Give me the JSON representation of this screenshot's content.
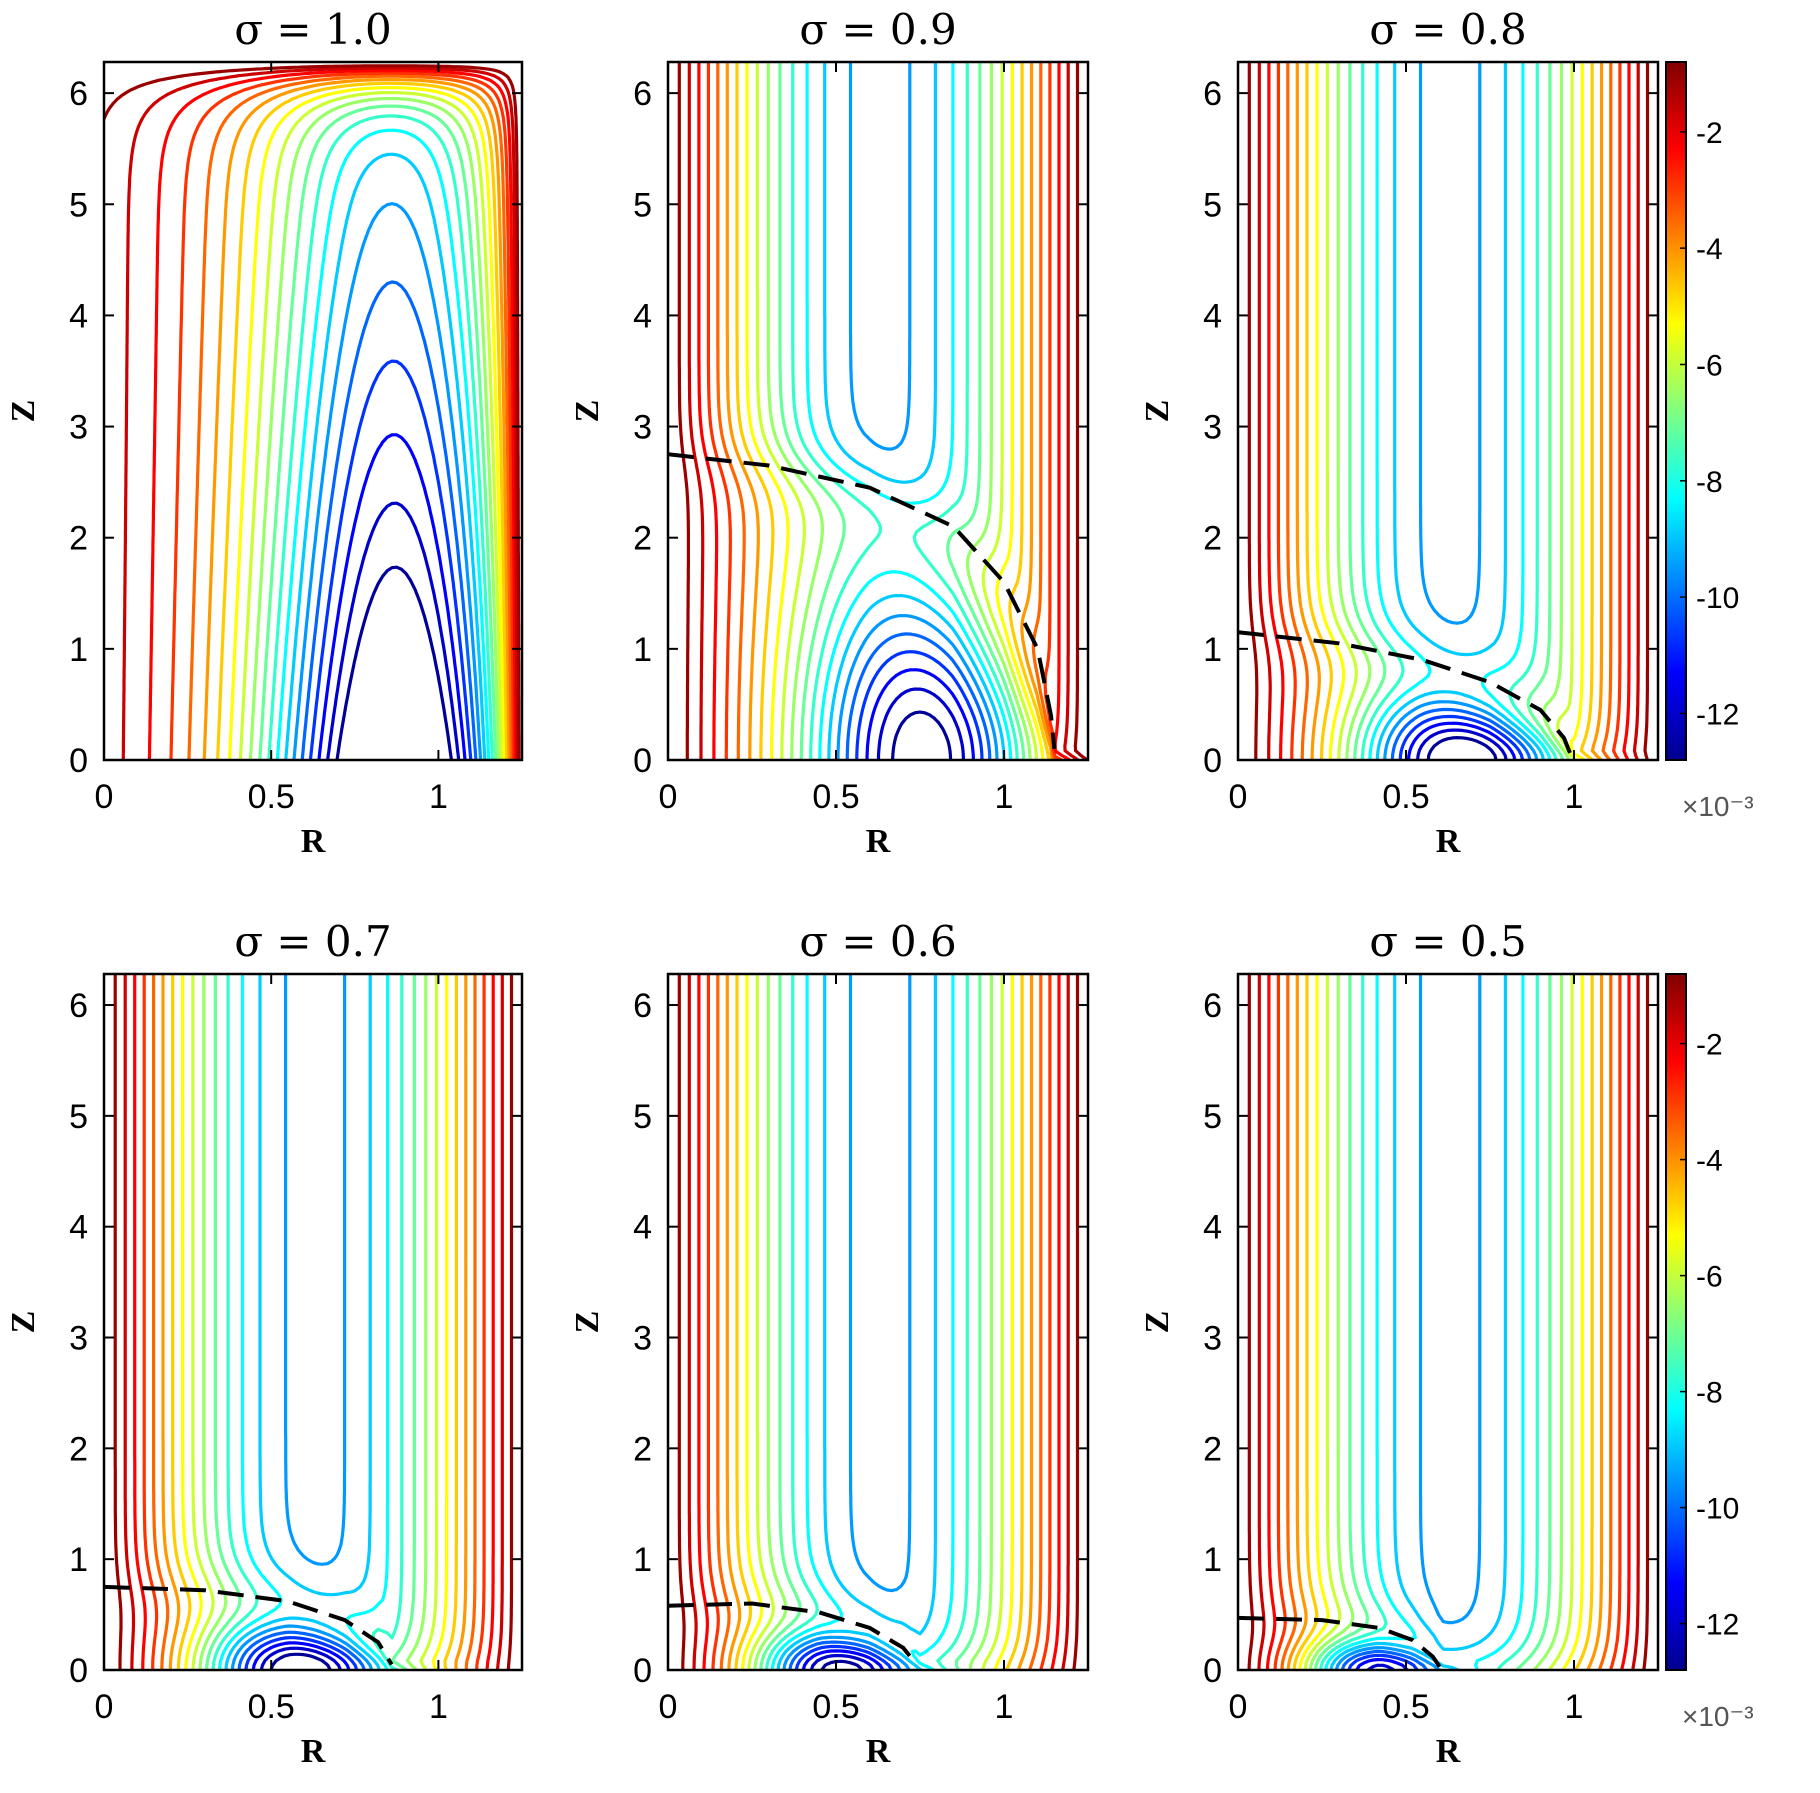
{
  "chart_data": [
    {
      "type": "contour",
      "title": "σ = 1.0",
      "sigma": 1.0,
      "xlabel": "R",
      "ylabel": "Z",
      "xlim": [
        0,
        1.25
      ],
      "ylim": [
        0,
        6.28
      ],
      "xticks": [
        "0",
        "0.5",
        "1"
      ],
      "yticks": [
        "0",
        "1",
        "2",
        "3",
        "4",
        "5",
        "6"
      ],
      "interface_dashed": false,
      "interface_points": [],
      "vortex_center": {
        "r": 0.9,
        "z": 0
      },
      "contour_levels": [
        -12.5,
        -11.9,
        -11.3,
        -10.7,
        -10.1,
        -9.5,
        -8.9,
        -8.3,
        -7.7,
        -7.1,
        -6.5,
        -5.9,
        -5.3,
        -4.7,
        -4.1,
        -3.5,
        -2.9,
        -2.3,
        -1.7,
        -1.1
      ]
    },
    {
      "type": "contour",
      "title": "σ = 0.9",
      "sigma": 0.9,
      "xlabel": "R",
      "ylabel": "Z",
      "xlim": [
        0,
        1.25
      ],
      "ylim": [
        0,
        6.28
      ],
      "xticks": [
        "0",
        "0.5",
        "1"
      ],
      "yticks": [
        "0",
        "1",
        "2",
        "3",
        "4",
        "5",
        "6"
      ],
      "interface_dashed": true,
      "interface_points": [
        [
          0,
          2.75
        ],
        [
          0.3,
          2.65
        ],
        [
          0.6,
          2.45
        ],
        [
          0.85,
          2.1
        ],
        [
          1.0,
          1.6
        ],
        [
          1.1,
          1.0
        ],
        [
          1.14,
          0.4
        ],
        [
          1.15,
          0.1
        ]
      ],
      "vortex_center": {
        "r": 0.8,
        "z": 0
      },
      "contour_levels": [
        -12.5,
        -11.9,
        -11.3,
        -10.7,
        -10.1,
        -9.5,
        -8.9,
        -8.3,
        -7.7,
        -7.1,
        -6.5,
        -5.9,
        -5.3,
        -4.7,
        -4.1,
        -3.5,
        -2.9,
        -2.3,
        -1.7,
        -1.1
      ]
    },
    {
      "type": "contour",
      "title": "σ = 0.8",
      "sigma": 0.8,
      "xlabel": "R",
      "ylabel": "Z",
      "xlim": [
        0,
        1.25
      ],
      "ylim": [
        0,
        6.28
      ],
      "xticks": [
        "0",
        "0.5",
        "1"
      ],
      "yticks": [
        "0",
        "1",
        "2",
        "3",
        "4",
        "5",
        "6"
      ],
      "interface_dashed": true,
      "interface_points": [
        [
          0,
          1.15
        ],
        [
          0.3,
          1.05
        ],
        [
          0.55,
          0.9
        ],
        [
          0.75,
          0.7
        ],
        [
          0.9,
          0.45
        ],
        [
          0.97,
          0.2
        ],
        [
          0.99,
          0.05
        ]
      ],
      "vortex_center": {
        "r": 0.68,
        "z": 0
      },
      "contour_levels": [
        -12.5,
        -11.9,
        -11.3,
        -10.7,
        -10.1,
        -9.5,
        -8.9,
        -8.3,
        -7.7,
        -7.1,
        -6.5,
        -5.9,
        -5.3,
        -4.7,
        -4.1,
        -3.5,
        -2.9,
        -2.3,
        -1.7,
        -1.1
      ]
    },
    {
      "type": "contour",
      "title": "σ = 0.7",
      "sigma": 0.7,
      "xlabel": "R",
      "ylabel": "Z",
      "xlim": [
        0,
        1.25
      ],
      "ylim": [
        0,
        6.28
      ],
      "xticks": [
        "0",
        "0.5",
        "1"
      ],
      "yticks": [
        "0",
        "1",
        "2",
        "3",
        "4",
        "5",
        "6"
      ],
      "interface_dashed": true,
      "interface_points": [
        [
          0,
          0.75
        ],
        [
          0.3,
          0.72
        ],
        [
          0.55,
          0.62
        ],
        [
          0.72,
          0.45
        ],
        [
          0.82,
          0.25
        ],
        [
          0.86,
          0.05
        ]
      ],
      "vortex_center": {
        "r": 0.58,
        "z": 0
      },
      "contour_levels": [
        -12.5,
        -11.9,
        -11.3,
        -10.7,
        -10.1,
        -9.5,
        -8.9,
        -8.3,
        -7.7,
        -7.1,
        -6.5,
        -5.9,
        -5.3,
        -4.7,
        -4.1,
        -3.5,
        -2.9,
        -2.3,
        -1.7,
        -1.1
      ]
    },
    {
      "type": "contour",
      "title": "σ = 0.6",
      "sigma": 0.6,
      "xlabel": "R",
      "ylabel": "Z",
      "xlim": [
        0,
        1.25
      ],
      "ylim": [
        0,
        6.28
      ],
      "xticks": [
        "0",
        "0.5",
        "1"
      ],
      "yticks": [
        "0",
        "1",
        "2",
        "3",
        "4",
        "5",
        "6"
      ],
      "interface_dashed": true,
      "interface_points": [
        [
          0,
          0.58
        ],
        [
          0.25,
          0.6
        ],
        [
          0.45,
          0.52
        ],
        [
          0.6,
          0.38
        ],
        [
          0.7,
          0.2
        ],
        [
          0.74,
          0.05
        ]
      ],
      "vortex_center": {
        "r": 0.5,
        "z": 0
      },
      "contour_levels": [
        -12.5,
        -11.9,
        -11.3,
        -10.7,
        -10.1,
        -9.5,
        -8.9,
        -8.3,
        -7.7,
        -7.1,
        -6.5,
        -5.9,
        -5.3,
        -4.7,
        -4.1,
        -3.5,
        -2.9,
        -2.3,
        -1.7,
        -1.1
      ]
    },
    {
      "type": "contour",
      "title": "σ = 0.5",
      "sigma": 0.5,
      "xlabel": "R",
      "ylabel": "Z",
      "xlim": [
        0,
        1.25
      ],
      "ylim": [
        0,
        6.28
      ],
      "xticks": [
        "0",
        "0.5",
        "1"
      ],
      "yticks": [
        "0",
        "1",
        "2",
        "3",
        "4",
        "5",
        "6"
      ],
      "interface_dashed": true,
      "interface_points": [
        [
          0,
          0.47
        ],
        [
          0.25,
          0.45
        ],
        [
          0.42,
          0.38
        ],
        [
          0.52,
          0.27
        ],
        [
          0.58,
          0.12
        ],
        [
          0.6,
          0.03
        ]
      ],
      "vortex_center": {
        "r": 0.4,
        "z": 0
      },
      "contour_levels": [
        -12.5,
        -11.9,
        -11.3,
        -10.7,
        -10.1,
        -9.5,
        -8.9,
        -8.3,
        -7.7,
        -7.1,
        -6.5,
        -5.9,
        -5.3,
        -4.7,
        -4.1,
        -3.5,
        -2.9,
        -2.3,
        -1.7,
        -1.1
      ]
    }
  ],
  "colorbars": [
    {
      "range": [
        -12.8,
        -0.8
      ],
      "ticks": [
        "-2",
        "-4",
        "-6",
        "-8",
        "-10",
        "-12"
      ],
      "tick_values": [
        -2,
        -4,
        -6,
        -8,
        -10,
        -12
      ],
      "exponent_label": "×10⁻³",
      "colormap": "jet"
    },
    {
      "range": [
        -12.8,
        -0.8
      ],
      "ticks": [
        "-2",
        "-4",
        "-6",
        "-8",
        "-10",
        "-12"
      ],
      "tick_values": [
        -2,
        -4,
        -6,
        -8,
        -10,
        -12
      ],
      "exponent_label": "×10⁻³",
      "colormap": "jet"
    }
  ],
  "colors": {
    "dashed_interface": "#000000",
    "axes": "#000000",
    "background": "#ffffff"
  }
}
